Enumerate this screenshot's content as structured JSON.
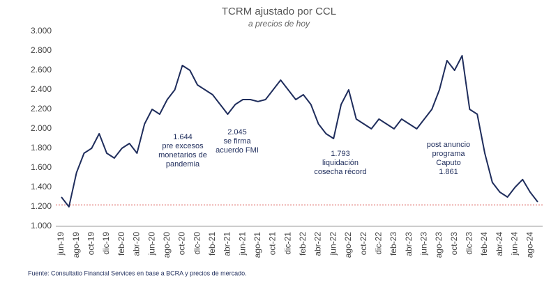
{
  "chart_data": {
    "type": "line",
    "title": "TCRM ajustado por CCL",
    "subtitle": "a precios de  hoy",
    "source": "Fuente: Consultatio Financial Services en base a BCRA y precios de mercado.",
    "categories": [
      "jun-19",
      null,
      "ago-19",
      null,
      "oct-19",
      null,
      "dic-19",
      null,
      "feb-20",
      null,
      "abr-20",
      null,
      "jun-20",
      null,
      "ago-20",
      null,
      "oct-20",
      null,
      "dic-20",
      null,
      "feb-21",
      null,
      "abr-21",
      null,
      "jun-21",
      null,
      "ago-21",
      null,
      "oct-21",
      null,
      "dic-21",
      null,
      "feb-22",
      null,
      "abr-22",
      null,
      "jun-22",
      null,
      "ago-22",
      null,
      "oct-22",
      null,
      "dic-22",
      null,
      "feb-23",
      null,
      "abr-23",
      null,
      "jun-23",
      null,
      "ago-23",
      null,
      "oct-23",
      null,
      "dic-23",
      null,
      "feb-24",
      null,
      "abr-24",
      null,
      "jun-24",
      null,
      "ago-24",
      null
    ],
    "series": [
      {
        "name": "TCRM",
        "color": "#1f2d5c",
        "values": [
          1300,
          1200,
          1550,
          1750,
          1800,
          1950,
          1750,
          1700,
          1800,
          1850,
          1750,
          2050,
          2200,
          2150,
          2300,
          2400,
          2650,
          2600,
          2450,
          2400,
          2350,
          2250,
          2150,
          2250,
          2300,
          2300,
          2280,
          2300,
          2400,
          2500,
          2400,
          2300,
          2350,
          2250,
          2050,
          1950,
          1900,
          2250,
          2400,
          2100,
          2050,
          2000,
          2100,
          2050,
          2000,
          2100,
          2050,
          2000,
          2100,
          2200,
          2400,
          2700,
          2600,
          2750,
          2200,
          2150,
          1750,
          1450,
          1350,
          1300,
          1400,
          1480,
          1350,
          1250
        ]
      }
    ],
    "ylim": [
      1000,
      3000
    ],
    "yticks": [
      {
        "value": 1000,
        "label": "1.000"
      },
      {
        "value": 1200,
        "label": "1.200"
      },
      {
        "value": 1400,
        "label": "1.400"
      },
      {
        "value": 1600,
        "label": "1.600"
      },
      {
        "value": 1800,
        "label": "1.800"
      },
      {
        "value": 2000,
        "label": "2.000"
      },
      {
        "value": 2200,
        "label": "2.200"
      },
      {
        "value": 2400,
        "label": "2.400"
      },
      {
        "value": 2600,
        "label": "2.600"
      },
      {
        "value": 2800,
        "label": "2.800"
      },
      {
        "value": 3000,
        "label": "3.000"
      }
    ],
    "reference_line": {
      "value": 1220,
      "color": "#d9534f"
    },
    "annotations": [
      {
        "lines": [
          "1.644",
          "pre excesos",
          "monetarios de",
          "pandemia"
        ]
      },
      {
        "lines": [
          "2.045",
          "se firma",
          "acuerdo FMI"
        ]
      },
      {
        "lines": [
          "1.793",
          "liquidación",
          "cosecha récord"
        ]
      },
      {
        "lines": [
          "post anuncio",
          "programa",
          "Caputo",
          "1.861"
        ]
      }
    ],
    "grid": false
  }
}
